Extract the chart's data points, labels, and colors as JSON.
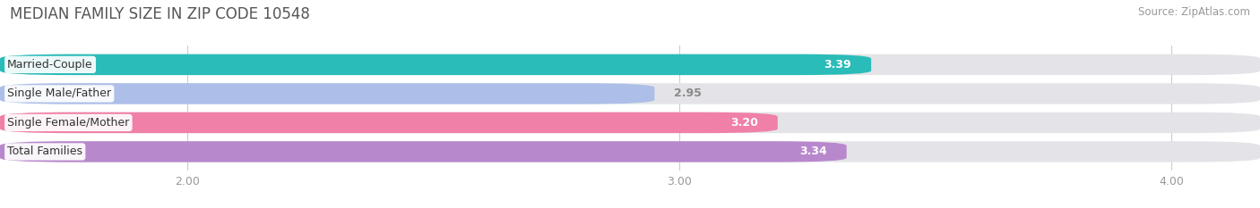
{
  "title": "MEDIAN FAMILY SIZE IN ZIP CODE 10548",
  "source": "Source: ZipAtlas.com",
  "categories": [
    "Married-Couple",
    "Single Male/Father",
    "Single Female/Mother",
    "Total Families"
  ],
  "values": [
    3.39,
    2.95,
    3.2,
    3.34
  ],
  "bar_colors": [
    "#2abcb8",
    "#adbfe8",
    "#f080a8",
    "#b888cc"
  ],
  "track_color": "#e4e4e8",
  "xlim": [
    1.62,
    4.18
  ],
  "xticks": [
    2.0,
    3.0,
    4.0
  ],
  "bar_height": 0.72,
  "bar_gap": 0.28,
  "figsize": [
    14.06,
    2.33
  ],
  "dpi": 100,
  "title_fontsize": 12,
  "source_fontsize": 8.5,
  "label_fontsize": 9,
  "value_fontsize": 9,
  "tick_fontsize": 9,
  "bg_color": "#ffffff"
}
